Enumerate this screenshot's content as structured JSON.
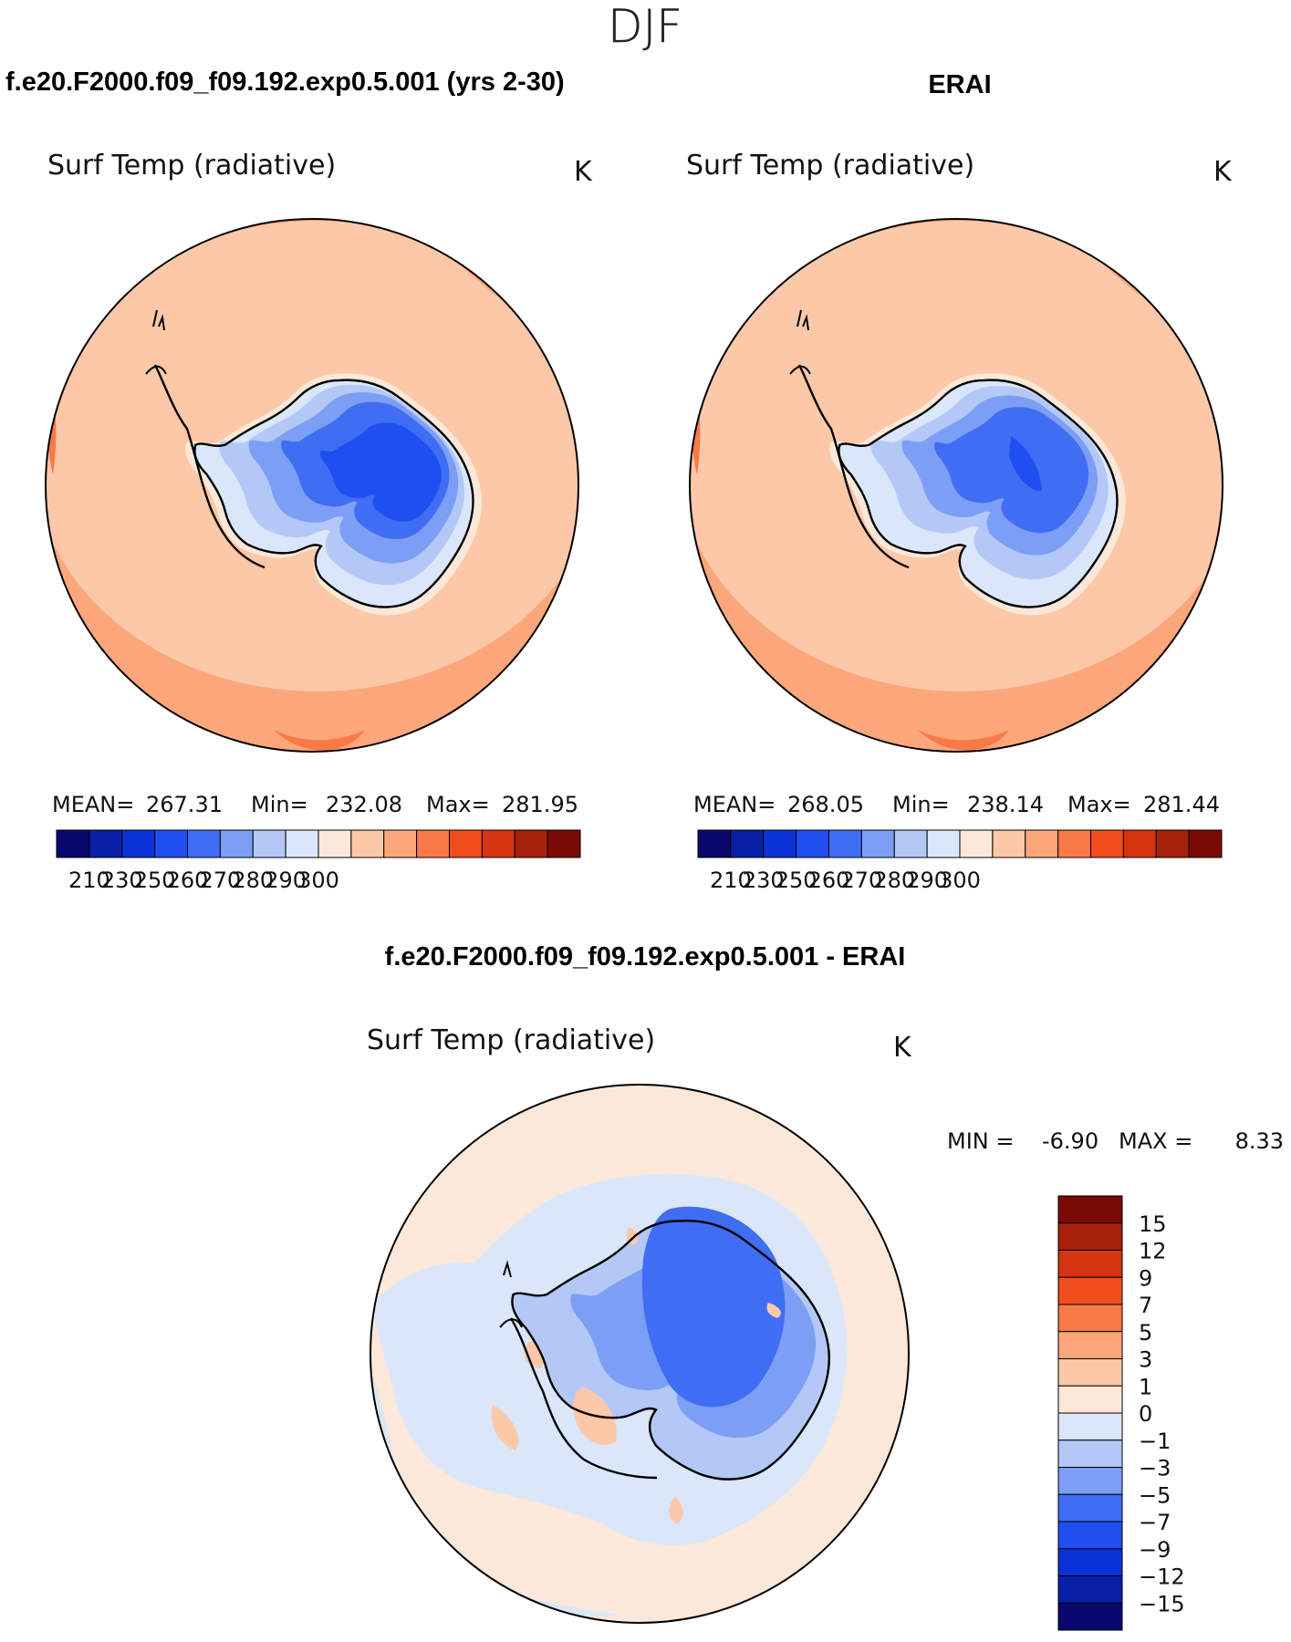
{
  "figure": {
    "season": "DJF",
    "case_title": "f.e20.F2000.f09_f09.192.exp0.5.001 (yrs 2-30)",
    "obs_title": "ERAI",
    "diff_title": "f.e20.F2000.f09_f09.192.exp0.5.001 - ERAI"
  },
  "chart_data": [
    {
      "type": "heatmap",
      "projection": "south-polar-stereographic",
      "title": "Surf Temp (radiative)",
      "units": "K",
      "stats": {
        "mean_label": "MEAN=",
        "mean": "267.31",
        "min_label": "Min=",
        "min": "232.08",
        "max_label": "Max=",
        "max": "281.95"
      },
      "colorbar": {
        "orientation": "horizontal",
        "tick_labels": [
          "210",
          "230",
          "250",
          "260",
          "270",
          "280",
          "290",
          "300"
        ],
        "colors": [
          "#08086e",
          "#0a1fa8",
          "#0b32d6",
          "#1f4ff0",
          "#3f6ef4",
          "#7d9ef5",
          "#b3c8f7",
          "#dae6fa",
          "#fce8d8",
          "#fdc8a8",
          "#fca67c",
          "#f97a47",
          "#f04e1c",
          "#d43410",
          "#a6200a",
          "#7a0a05"
        ]
      }
    },
    {
      "type": "heatmap",
      "projection": "south-polar-stereographic",
      "title": "Surf Temp (radiative)",
      "units": "K",
      "stats": {
        "mean_label": "MEAN=",
        "mean": "268.05",
        "min_label": "Min=",
        "min": "238.14",
        "max_label": "Max=",
        "max": "281.44"
      },
      "colorbar": {
        "orientation": "horizontal",
        "tick_labels": [
          "210",
          "230",
          "250",
          "260",
          "270",
          "280",
          "290",
          "300"
        ],
        "colors": [
          "#08086e",
          "#0a1fa8",
          "#0b32d6",
          "#1f4ff0",
          "#3f6ef4",
          "#7d9ef5",
          "#b3c8f7",
          "#dae6fa",
          "#fce8d8",
          "#fdc8a8",
          "#fca67c",
          "#f97a47",
          "#f04e1c",
          "#d43410",
          "#a6200a",
          "#7a0a05"
        ]
      }
    },
    {
      "type": "heatmap",
      "projection": "south-polar-stereographic",
      "title": "Surf Temp (radiative)",
      "units": "K",
      "stats": {
        "min_label": "MIN =",
        "min": "-6.90",
        "max_label": "MAX =",
        "max": "8.33"
      },
      "colorbar": {
        "orientation": "vertical",
        "tick_labels": [
          "15",
          "12",
          "9",
          "7",
          "5",
          "3",
          "1",
          "0",
          "−1",
          "−3",
          "−5",
          "−7",
          "−9",
          "−12",
          "−15"
        ],
        "colors": [
          "#7a0a05",
          "#a6200a",
          "#d43410",
          "#f04e1c",
          "#f97a47",
          "#fca67c",
          "#fdc8a8",
          "#fce8d8",
          "#dae6fa",
          "#b3c8f7",
          "#7d9ef5",
          "#3f6ef4",
          "#1f4ff0",
          "#0b32d6",
          "#0a1fa8",
          "#08086e"
        ]
      }
    }
  ]
}
